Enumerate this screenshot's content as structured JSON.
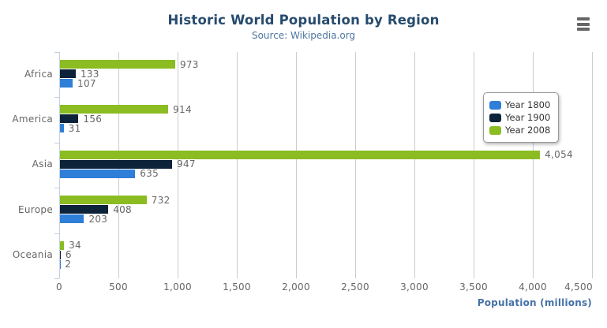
{
  "chart_data": {
    "type": "bar",
    "title": "Historic World Population by Region",
    "subtitle": "Source: Wikipedia.org",
    "categories": [
      "Africa",
      "America",
      "Asia",
      "Europe",
      "Oceania"
    ],
    "series": [
      {
        "name": "Year 1800",
        "color": "#2f7ed8",
        "values": [
          107,
          31,
          635,
          203,
          2
        ]
      },
      {
        "name": "Year 1900",
        "color": "#0d233a",
        "values": [
          133,
          156,
          947,
          408,
          6
        ]
      },
      {
        "name": "Year 2008",
        "color": "#8bbc21",
        "values": [
          973,
          914,
          4054,
          732,
          34
        ]
      }
    ],
    "bar_order_top_to_bottom": [
      "Year 2008",
      "Year 1900",
      "Year 1800"
    ],
    "data_labels_visible": true,
    "xlabel": "Population (millions)",
    "xlim": [
      0,
      4500
    ],
    "x_tick_interval": 500,
    "x_tick_labels": [
      "0",
      "500",
      "1,000",
      "1,500",
      "2,000",
      "2,500",
      "3,000",
      "3,500",
      "4,000",
      "4,500"
    ],
    "grid": "vertical",
    "legend_position": "middle-right"
  },
  "colors": {
    "title": "#274b6d",
    "subtitle": "#4d759e",
    "axis_title": "#4572a7",
    "labels": "#666666",
    "grid": "#cccccc",
    "axis_line": "#c0d0e0",
    "legend_border": "#999999",
    "legend_text": "#333333",
    "menu_icon": "#666666"
  },
  "menu_button": {
    "icon": "hamburger-icon"
  }
}
